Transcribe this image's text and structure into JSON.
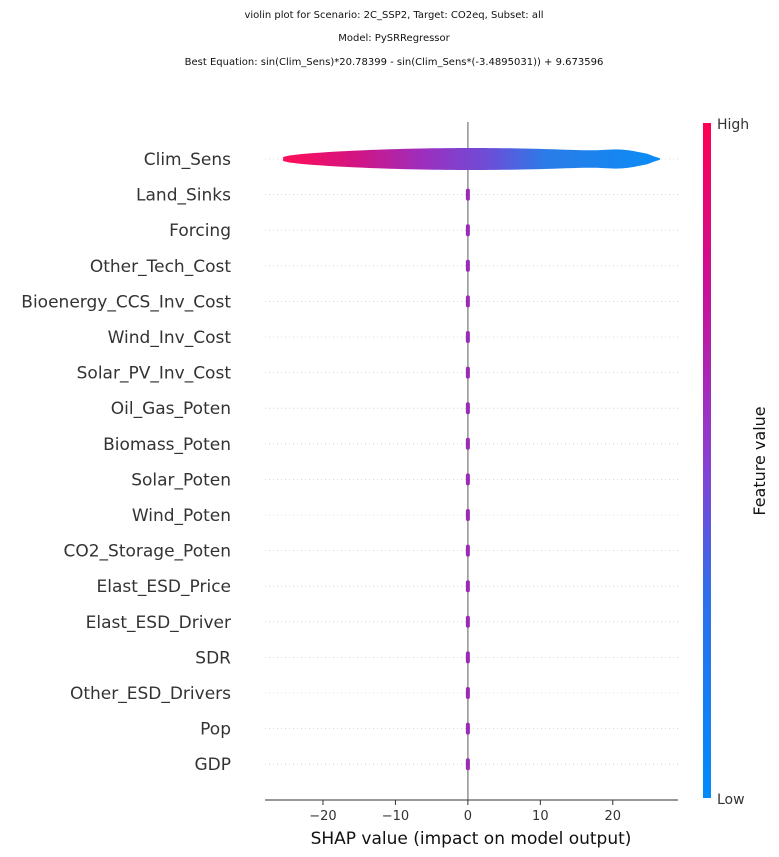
{
  "chart_data": {
    "type": "violin",
    "title_lines": [
      "violin plot for Scenario: 2C_SSP2, Target: CO2eq, Subset: all",
      "Model: PySRRegressor",
      "Best Equation: sin(Clim_Sens)*20.78399 - sin(Clim_Sens*(-3.4895031)) + 9.673596"
    ],
    "xlabel": "SHAP value (impact on model output)",
    "xlim": [
      -28,
      29
    ],
    "xticks": [
      -20,
      -10,
      0,
      10,
      20
    ],
    "xtick_labels": [
      "−20",
      "−10",
      "0",
      "10",
      "20"
    ],
    "features": [
      {
        "name": "Clim_Sens",
        "min": -25.5,
        "max": 26.5,
        "spread": "wide"
      },
      {
        "name": "Land_Sinks",
        "min": -0.2,
        "max": 0.2,
        "spread": "narrow"
      },
      {
        "name": "Forcing",
        "min": -0.2,
        "max": 0.2,
        "spread": "narrow"
      },
      {
        "name": "Other_Tech_Cost",
        "min": -0.2,
        "max": 0.2,
        "spread": "narrow"
      },
      {
        "name": "Bioenergy_CCS_Inv_Cost",
        "min": -0.2,
        "max": 0.2,
        "spread": "narrow"
      },
      {
        "name": "Wind_Inv_Cost",
        "min": -0.2,
        "max": 0.2,
        "spread": "narrow"
      },
      {
        "name": "Solar_PV_Inv_Cost",
        "min": -0.2,
        "max": 0.2,
        "spread": "narrow"
      },
      {
        "name": "Oil_Gas_Poten",
        "min": -0.2,
        "max": 0.2,
        "spread": "narrow"
      },
      {
        "name": "Biomass_Poten",
        "min": -0.2,
        "max": 0.2,
        "spread": "narrow"
      },
      {
        "name": "Solar_Poten",
        "min": -0.2,
        "max": 0.2,
        "spread": "narrow"
      },
      {
        "name": "Wind_Poten",
        "min": -0.2,
        "max": 0.2,
        "spread": "narrow"
      },
      {
        "name": "CO2_Storage_Poten",
        "min": -0.2,
        "max": 0.2,
        "spread": "narrow"
      },
      {
        "name": "Elast_ESD_Price",
        "min": -0.2,
        "max": 0.2,
        "spread": "narrow"
      },
      {
        "name": "Elast_ESD_Driver",
        "min": -0.2,
        "max": 0.2,
        "spread": "narrow"
      },
      {
        "name": "SDR",
        "min": -0.2,
        "max": 0.2,
        "spread": "narrow"
      },
      {
        "name": "Other_ESD_Drivers",
        "min": -0.2,
        "max": 0.2,
        "spread": "narrow"
      },
      {
        "name": "Pop",
        "min": -0.2,
        "max": 0.2,
        "spread": "narrow"
      },
      {
        "name": "GDP",
        "min": -0.2,
        "max": 0.2,
        "spread": "narrow"
      }
    ],
    "colorbar": {
      "label": "Feature value",
      "high_label": "High",
      "low_label": "Low",
      "high_color": "#ff0d57",
      "mid_color": "#7b3fce",
      "low_color": "#1e88e5"
    },
    "grid": "dotted horizontal per feature",
    "zero_line": true
  }
}
